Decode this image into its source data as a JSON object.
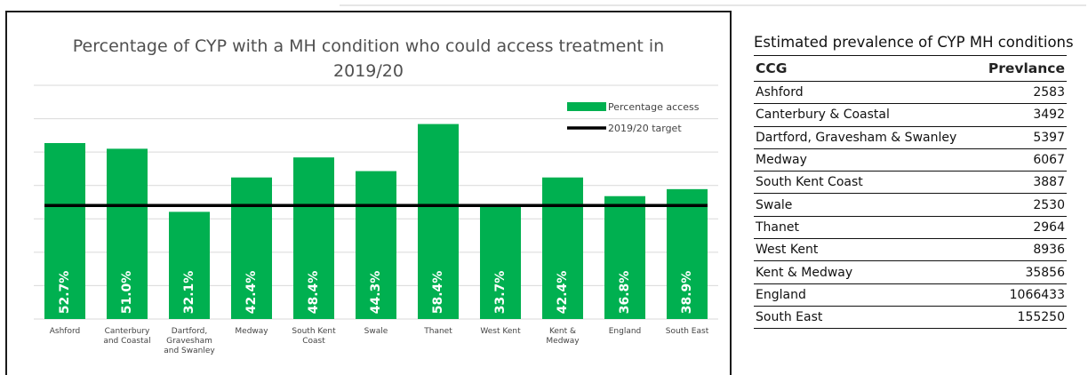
{
  "chart_data": {
    "type": "bar",
    "title_line1": "Percentage of CYP with a MH condition who could access treatment in",
    "title_line2": "2019/20",
    "categories": [
      [
        "Ashford"
      ],
      [
        "Canterbury",
        "and Coastal"
      ],
      [
        "Dartford,",
        "Gravesham",
        "and Swanley"
      ],
      [
        "Medway"
      ],
      [
        "South Kent",
        "Coast"
      ],
      [
        "Swale"
      ],
      [
        "Thanet"
      ],
      [
        "West Kent"
      ],
      [
        "Kent &",
        "Medway"
      ],
      [
        "England"
      ],
      [
        "South East"
      ]
    ],
    "series": [
      {
        "name": "Percentage access",
        "values": [
          52.7,
          51.0,
          32.1,
          42.4,
          48.4,
          44.3,
          58.4,
          33.7,
          42.4,
          36.8,
          38.9
        ],
        "labels": [
          "52.7%",
          "51.0%",
          "32.1%",
          "42.4%",
          "48.4%",
          "44.3%",
          "58.4%",
          "33.7%",
          "42.4%",
          "36.8%",
          "38.9%"
        ],
        "color": "#00b050"
      }
    ],
    "target": {
      "name": "2019/20 target",
      "value": 34,
      "color": "#000000"
    },
    "ylim": [
      0,
      70
    ],
    "grid": true,
    "legend_position": "top-right"
  },
  "table": {
    "caption": "Estimated prevalence of CYP MH conditions",
    "headers": [
      "CCG",
      "Prevlance"
    ],
    "rows": [
      [
        "Ashford",
        "2583"
      ],
      [
        "Canterbury & Coastal",
        "3492"
      ],
      [
        "Dartford, Gravesham & Swanley",
        "5397"
      ],
      [
        "Medway",
        "6067"
      ],
      [
        "South Kent Coast",
        "3887"
      ],
      [
        "Swale",
        "2530"
      ],
      [
        "Thanet",
        "2964"
      ],
      [
        "West Kent",
        "8936"
      ],
      [
        "Kent & Medway",
        "35856"
      ],
      [
        "England",
        "1066433"
      ],
      [
        "South East",
        "155250"
      ]
    ]
  }
}
